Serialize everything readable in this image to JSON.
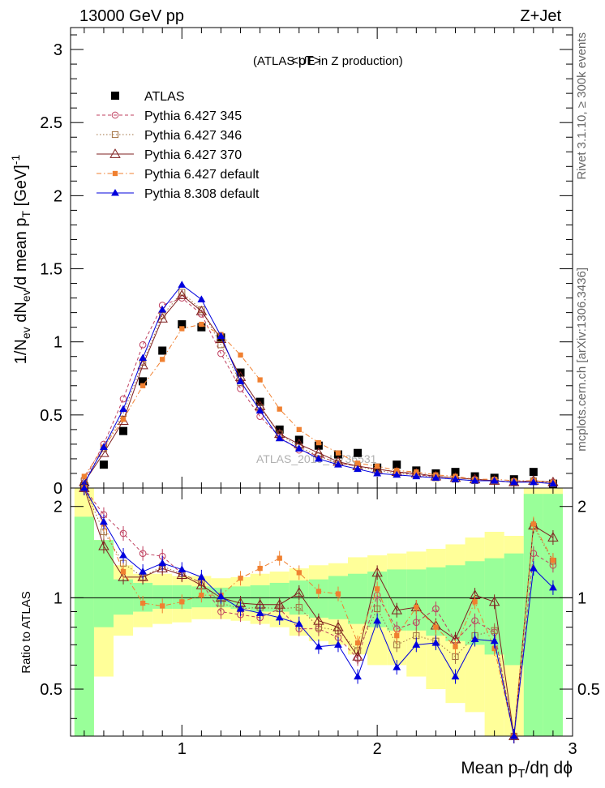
{
  "header": {
    "left": "13000 GeV pp",
    "right": "Z+Jet"
  },
  "side_labels": {
    "rivet": "Rivet 3.1.10, ≥ 300k events",
    "mcplots": "mcplots.cern.ch [arXiv:1306.3436]"
  },
  "watermark": "ATLAS_2019_I1736531",
  "chart_data": [
    {
      "type": "line",
      "panel": "main",
      "title": "<pT>",
      "subtitle": "(ATLAS UE in Z production)",
      "ylabel_parts": [
        "1/N",
        "ev",
        " dN",
        "ev",
        "/d mean p",
        "T",
        " [GeV]",
        "-1"
      ],
      "xlim": [
        0.43,
        3.0
      ],
      "ylim": [
        0,
        3.15
      ],
      "yticks": [
        0,
        0.5,
        1,
        1.5,
        2,
        2.5,
        3
      ],
      "ytick_labels": [
        "0",
        "0.5",
        "1",
        "1.5",
        "2",
        "2.5",
        "3"
      ],
      "x": [
        0.5,
        0.6,
        0.7,
        0.8,
        0.9,
        1.0,
        1.1,
        1.2,
        1.3,
        1.4,
        1.5,
        1.6,
        1.7,
        1.8,
        1.9,
        2.0,
        2.1,
        2.2,
        2.3,
        2.4,
        2.5,
        2.6,
        2.7,
        2.8,
        2.9
      ],
      "series": [
        {
          "name": "ATLAS",
          "color": "#000000",
          "marker": "square-filled",
          "line": "none",
          "values": [
            0.01,
            0.16,
            0.39,
            0.73,
            0.94,
            1.12,
            1.1,
            1.03,
            0.79,
            0.59,
            0.4,
            0.33,
            0.29,
            0.23,
            0.24,
            0.14,
            0.16,
            0.12,
            0.1,
            0.11,
            0.08,
            0.07,
            0.06,
            0.11,
            0.03
          ]
        },
        {
          "name": "Pythia 6.427 345",
          "color": "#bf3f5f",
          "marker": "circle-open",
          "line": "dashed",
          "values": [
            0.06,
            0.3,
            0.61,
            0.98,
            1.25,
            1.3,
            1.19,
            0.92,
            0.68,
            0.49,
            0.35,
            0.26,
            0.22,
            0.17,
            0.15,
            0.13,
            0.11,
            0.09,
            0.08,
            0.07,
            0.06,
            0.05,
            0.04,
            0.05,
            0.04
          ]
        },
        {
          "name": "Pythia 6.427 346",
          "color": "#a07040",
          "marker": "square-open",
          "line": "dotted",
          "values": [
            0.05,
            0.27,
            0.51,
            0.86,
            1.18,
            1.34,
            1.22,
            0.98,
            0.72,
            0.55,
            0.37,
            0.28,
            0.22,
            0.17,
            0.15,
            0.12,
            0.1,
            0.09,
            0.07,
            0.06,
            0.05,
            0.05,
            0.04,
            0.05,
            0.03
          ]
        },
        {
          "name": "Pythia 6.427 370",
          "color": "#7f1f1f",
          "marker": "triangle-open",
          "line": "solid",
          "values": [
            0.04,
            0.24,
            0.46,
            0.84,
            1.16,
            1.32,
            1.21,
            1.02,
            0.76,
            0.56,
            0.37,
            0.3,
            0.24,
            0.18,
            0.15,
            0.13,
            0.11,
            0.1,
            0.08,
            0.07,
            0.06,
            0.05,
            0.04,
            0.05,
            0.04
          ]
        },
        {
          "name": "Pythia 6.427 default",
          "color": "#f08030",
          "marker": "square-filled-small",
          "line": "dashdot",
          "values": [
            0.08,
            0.28,
            0.47,
            0.7,
            0.88,
            1.09,
            1.12,
            1.05,
            0.91,
            0.74,
            0.54,
            0.4,
            0.31,
            0.24,
            0.17,
            0.15,
            0.12,
            0.11,
            0.09,
            0.08,
            0.06,
            0.06,
            0.05,
            0.05,
            0.04
          ]
        },
        {
          "name": "Pythia 8.308 default",
          "color": "#0000dd",
          "marker": "triangle-filled",
          "line": "solid",
          "values": [
            0.03,
            0.28,
            0.54,
            0.89,
            1.22,
            1.39,
            1.29,
            1.04,
            0.73,
            0.53,
            0.34,
            0.27,
            0.2,
            0.16,
            0.13,
            0.1,
            0.09,
            0.08,
            0.07,
            0.06,
            0.05,
            0.05,
            0.04,
            0.04,
            0.03
          ]
        }
      ],
      "legend_position": "top-left"
    },
    {
      "type": "line",
      "panel": "ratio",
      "ylabel": "Ratio to ATLAS",
      "xlabel_parts": [
        "Mean p",
        "T",
        "/dη dϕ"
      ],
      "xlim": [
        0.43,
        3.0
      ],
      "ylim": [
        0.35,
        2.3
      ],
      "xticks": [
        1,
        2,
        3
      ],
      "xtick_labels": [
        "1",
        "2",
        "3"
      ],
      "yticks": [
        0.5,
        1,
        2
      ],
      "ytick_labels": [
        "0.5",
        "1",
        "2"
      ],
      "x": [
        0.5,
        0.6,
        0.7,
        0.8,
        0.9,
        1.0,
        1.1,
        1.2,
        1.3,
        1.4,
        1.5,
        1.6,
        1.7,
        1.8,
        1.9,
        2.0,
        2.1,
        2.2,
        2.3,
        2.4,
        2.5,
        2.6,
        2.7,
        2.8,
        2.9
      ],
      "band_yellow": [
        [
          0.35,
          2.3
        ],
        [
          0.55,
          1.55
        ],
        [
          0.75,
          1.28
        ],
        [
          0.8,
          1.2
        ],
        [
          0.82,
          1.2
        ],
        [
          0.83,
          1.18
        ],
        [
          0.85,
          1.18
        ],
        [
          0.85,
          1.16
        ],
        [
          0.84,
          1.17
        ],
        [
          0.82,
          1.2
        ],
        [
          0.8,
          1.22
        ],
        [
          0.75,
          1.25
        ],
        [
          0.72,
          1.28
        ],
        [
          0.7,
          1.3
        ],
        [
          0.65,
          1.36
        ],
        [
          0.6,
          1.38
        ],
        [
          0.6,
          1.4
        ],
        [
          0.55,
          1.42
        ],
        [
          0.5,
          1.45
        ],
        [
          0.45,
          1.5
        ],
        [
          0.42,
          1.58
        ],
        [
          0.35,
          1.65
        ],
        [
          0.35,
          1.6
        ],
        [
          0.35,
          2.3
        ],
        [
          0.35,
          2.3
        ]
      ],
      "band_green": [
        [
          0.35,
          1.85
        ],
        [
          0.8,
          1.55
        ],
        [
          0.88,
          1.15
        ],
        [
          0.9,
          1.12
        ],
        [
          0.92,
          1.1
        ],
        [
          0.92,
          1.1
        ],
        [
          0.93,
          1.09
        ],
        [
          0.93,
          1.08
        ],
        [
          0.92,
          1.09
        ],
        [
          0.9,
          1.1
        ],
        [
          0.9,
          1.12
        ],
        [
          0.88,
          1.14
        ],
        [
          0.86,
          1.15
        ],
        [
          0.85,
          1.18
        ],
        [
          0.82,
          1.2
        ],
        [
          0.8,
          1.22
        ],
        [
          0.78,
          1.24
        ],
        [
          0.78,
          1.24
        ],
        [
          0.75,
          1.26
        ],
        [
          0.72,
          1.28
        ],
        [
          0.7,
          1.32
        ],
        [
          0.65,
          1.35
        ],
        [
          0.6,
          1.4
        ],
        [
          0.35,
          2.2
        ],
        [
          0.35,
          2.2
        ]
      ],
      "series": [
        {
          "name": "Pythia 6.427 345",
          "color": "#bf3f5f",
          "marker": "circle-open",
          "line": "dashed",
          "values": [
            2.3,
            1.88,
            1.63,
            1.4,
            1.37,
            1.2,
            1.12,
            0.9,
            0.88,
            0.86,
            0.92,
            0.79,
            0.79,
            0.74,
            0.63,
            1.02,
            0.79,
            0.83,
            0.92,
            0.72,
            0.84,
            0.77,
            0.3,
            1.4,
            1.28
          ]
        },
        {
          "name": "Pythia 6.427 346",
          "color": "#a07040",
          "marker": "square-open",
          "line": "dotted",
          "values": [
            2.3,
            1.65,
            1.3,
            1.17,
            1.27,
            1.2,
            1.12,
            0.96,
            0.92,
            0.93,
            0.92,
            0.93,
            0.8,
            0.78,
            0.67,
            0.92,
            0.7,
            0.75,
            0.72,
            0.64,
            0.75,
            0.78,
            0.3,
            1.72,
            1.32
          ]
        },
        {
          "name": "Pythia 6.427 370",
          "color": "#7f1f1f",
          "marker": "triangle-open",
          "line": "solid",
          "values": [
            2.3,
            1.48,
            1.17,
            1.17,
            1.25,
            1.19,
            1.1,
            1.0,
            0.96,
            0.95,
            0.95,
            1.04,
            0.84,
            0.8,
            0.64,
            1.21,
            0.91,
            0.93,
            0.81,
            0.73,
            1.02,
            0.97,
            0.3,
            1.73,
            1.58
          ]
        },
        {
          "name": "Pythia 6.427 default",
          "color": "#f08030",
          "marker": "square-filled-small",
          "line": "dashdot",
          "values": [
            2.3,
            1.75,
            1.22,
            0.96,
            0.94,
            0.97,
            1.02,
            1.02,
            1.16,
            1.25,
            1.35,
            1.21,
            1.05,
            1.03,
            0.71,
            1.07,
            0.75,
            0.93,
            0.8,
            0.69,
            0.97,
            0.68,
            0.3,
            1.75,
            1.33
          ]
        },
        {
          "name": "Pythia 8.308 default",
          "color": "#0000dd",
          "marker": "triangle-filled",
          "line": "solid",
          "values": [
            2.3,
            1.78,
            1.38,
            1.22,
            1.3,
            1.24,
            1.17,
            1.01,
            0.92,
            0.89,
            0.86,
            0.82,
            0.69,
            0.7,
            0.55,
            0.84,
            0.59,
            0.7,
            0.71,
            0.55,
            0.73,
            0.72,
            0.3,
            1.25,
            1.08
          ]
        }
      ]
    }
  ]
}
